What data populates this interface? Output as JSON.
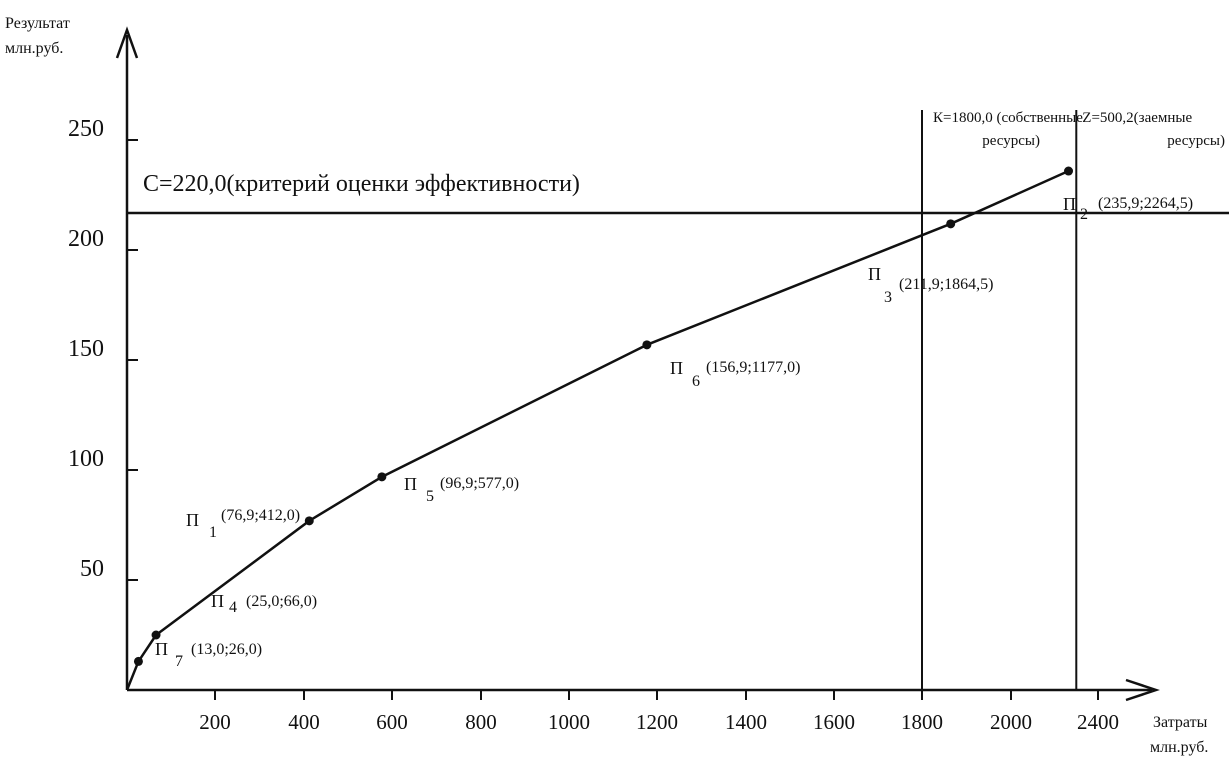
{
  "chart_data": {
    "type": "line",
    "y_axis_title": [
      "Результат",
      "млн.руб."
    ],
    "x_axis_title": [
      "Затраты",
      "млн.руб."
    ],
    "y_ticks": [
      {
        "value": 50,
        "label": "50"
      },
      {
        "value": 100,
        "label": "100"
      },
      {
        "value": 150,
        "label": "150"
      },
      {
        "value": 200,
        "label": "200"
      },
      {
        "value": 250,
        "label": "250"
      }
    ],
    "x_ticks": [
      {
        "value": 200,
        "label": "200"
      },
      {
        "value": 400,
        "label": "400"
      },
      {
        "value": 600,
        "label": "600"
      },
      {
        "value": 800,
        "label": "800"
      },
      {
        "value": 1000,
        "label": "1000"
      },
      {
        "value": 1200,
        "label": "1200"
      },
      {
        "value": 1400,
        "label": "1400"
      },
      {
        "value": 1600,
        "label": "1600"
      },
      {
        "value": 1800,
        "label": "1800"
      },
      {
        "value": 2000,
        "label": "2000"
      },
      {
        "value": 2400,
        "label": "2400"
      }
    ],
    "xlim": [
      0,
      2400
    ],
    "ylim": [
      0,
      275
    ],
    "series": [
      {
        "points": [
          {
            "name": "П",
            "sub": "7",
            "coords": "(13,0;26,0)",
            "x": 26.0,
            "y": 13.0
          },
          {
            "name": "П",
            "sub": "4",
            "coords": "(25,0;66,0)",
            "x": 66.0,
            "y": 25.0
          },
          {
            "name": "П",
            "sub": "1",
            "coords": "(76,9;412,0)",
            "x": 412.0,
            "y": 76.9
          },
          {
            "name": "П",
            "sub": "5",
            "coords": "(96,9;577,0)",
            "x": 577.0,
            "y": 96.9
          },
          {
            "name": "П",
            "sub": "6",
            "coords": "(156,9;1177,0)",
            "x": 1177.0,
            "y": 156.9
          },
          {
            "name": "П",
            "sub": "3",
            "coords": "(211,9;1864,5)",
            "x": 1864.5,
            "y": 211.9
          },
          {
            "name": "П",
            "sub": "2",
            "coords": "(235,9;2264,5)",
            "x": 2264.5,
            "y": 235.9
          }
        ]
      }
    ],
    "reference_lines": [
      {
        "orientation": "horizontal",
        "y": 220.0,
        "label": "С=220,0(критерий оценки эффективности)"
      },
      {
        "orientation": "vertical",
        "x": 1800.0,
        "label_top": "К=1800,0 (собственные",
        "label_bottom": "ресурсы)"
      },
      {
        "orientation": "vertical",
        "x": 2300.2,
        "label_top": "Z=500,2(заемные",
        "label_bottom": "ресурсы)"
      }
    ],
    "grid": false,
    "legend": "none"
  }
}
